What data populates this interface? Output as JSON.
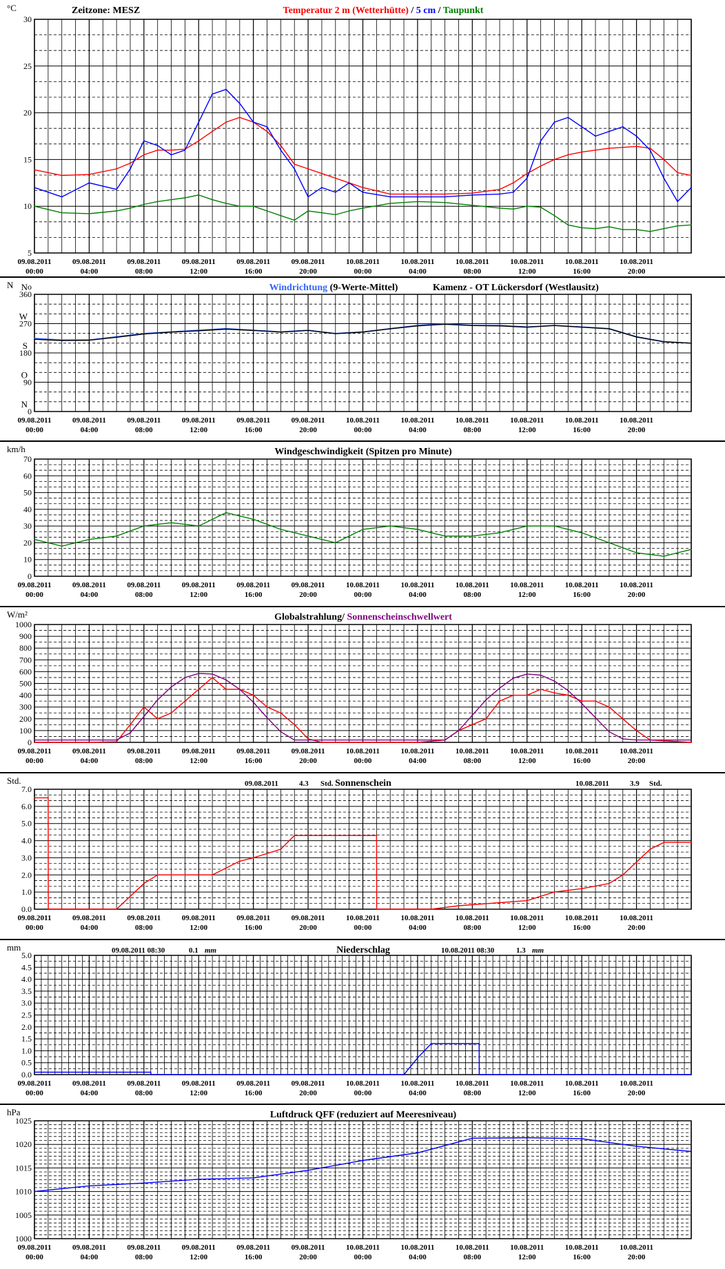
{
  "chart_data": [
    {
      "id": "temp",
      "type": "line",
      "unit_label": "°C",
      "header_left": "Zeitzone: MESZ",
      "title_parts": [
        {
          "text": "Temperatur 2 m (Wetterhütte)",
          "color": "#ff0000"
        },
        {
          "text": "  /  ",
          "color": "#000000"
        },
        {
          "text": "5 cm",
          "color": "#0000ff"
        },
        {
          "text": " / ",
          "color": "#000000"
        },
        {
          "text": "Taupunkt",
          "color": "#008000"
        }
      ],
      "ylim": [
        5,
        30
      ],
      "yticks": [
        "5",
        "10",
        "15",
        "20",
        "25",
        "30"
      ],
      "x_ticks": [
        {
          "date": "09.08.2011",
          "time": "00:00"
        },
        {
          "date": "09.08.2011",
          "time": "04:00"
        },
        {
          "date": "09.08.2011",
          "time": "08:00"
        },
        {
          "date": "09.08.2011",
          "time": "12:00"
        },
        {
          "date": "09.08.2011",
          "time": "16:00"
        },
        {
          "date": "09.08.2011",
          "time": "20:00"
        },
        {
          "date": "10.08.2011",
          "time": "00:00"
        },
        {
          "date": "10.08.2011",
          "time": "04:00"
        },
        {
          "date": "10.08.2011",
          "time": "08:00"
        },
        {
          "date": "10.08.2011",
          "time": "12:00"
        },
        {
          "date": "10.08.2011",
          "time": "16:00"
        },
        {
          "date": "10.08.2011",
          "time": "20:00"
        }
      ],
      "x_hours": [
        0,
        2,
        4,
        6,
        7,
        8,
        9,
        10,
        11,
        12,
        13,
        14,
        15,
        16,
        17,
        18,
        19,
        20,
        21,
        22,
        23,
        24,
        26,
        28,
        30,
        32,
        34,
        35,
        36,
        37,
        38,
        39,
        40,
        41,
        42,
        43,
        44,
        45,
        46,
        47,
        48
      ],
      "series": [
        {
          "name": "Temperatur 2 m (Wetterhütte)",
          "color": "#ff0000",
          "values": [
            13.9,
            13.3,
            13.4,
            14.0,
            14.6,
            15.5,
            16.0,
            16.0,
            16.1,
            17.0,
            18.0,
            19.0,
            19.5,
            19.0,
            18.0,
            16.5,
            14.5,
            14.0,
            13.5,
            13.0,
            12.5,
            12.0,
            11.3,
            11.3,
            11.3,
            11.4,
            11.8,
            12.5,
            13.5,
            14.3,
            15.0,
            15.5,
            15.8,
            16.0,
            16.2,
            16.3,
            16.4,
            16.2,
            15.0,
            13.6,
            13.3
          ]
        },
        {
          "name": "5 cm",
          "color": "#0000ff",
          "values": [
            12.0,
            11.0,
            12.5,
            11.8,
            14.0,
            17.0,
            16.5,
            15.5,
            16.0,
            19.0,
            22.0,
            22.5,
            21.0,
            19.0,
            18.5,
            16.0,
            14.0,
            11.0,
            12.0,
            11.5,
            12.5,
            11.5,
            11.0,
            11.0,
            11.0,
            11.2,
            11.3,
            11.5,
            13.0,
            17.0,
            19.0,
            19.5,
            18.5,
            17.5,
            18.0,
            18.5,
            17.5,
            16.0,
            13.0,
            10.5,
            12.0
          ]
        },
        {
          "name": "Taupunkt",
          "color": "#008000",
          "values": [
            10.0,
            9.3,
            9.2,
            9.5,
            9.8,
            10.2,
            10.5,
            10.7,
            10.9,
            11.2,
            10.7,
            10.3,
            10.0,
            10.0,
            9.5,
            9.0,
            8.5,
            9.5,
            9.3,
            9.1,
            9.5,
            9.8,
            10.3,
            10.5,
            10.4,
            10.1,
            9.8,
            9.7,
            10.0,
            9.9,
            9.0,
            8.0,
            7.7,
            7.6,
            7.8,
            7.5,
            7.5,
            7.3,
            7.6,
            7.9,
            8.0
          ]
        }
      ]
    },
    {
      "id": "winddir",
      "type": "line",
      "unit_label": "N",
      "right_label": "o",
      "title_parts": [
        {
          "text": "Windrichtung",
          "color": "#3366ff"
        },
        {
          "text": " (9-Werte-Mittel)",
          "color": "#000000"
        }
      ],
      "header_right": "Kamenz - OT Lückersdorf (Westlausitz)",
      "ylim": [
        0,
        360
      ],
      "yticks": [
        "0",
        "90",
        "180",
        "270",
        "360"
      ],
      "compass_labels": [
        "N",
        "O",
        "S",
        "W",
        "N"
      ],
      "x_hours": [
        0,
        2,
        4,
        6,
        8,
        10,
        12,
        14,
        16,
        18,
        20,
        22,
        24,
        26,
        28,
        30,
        32,
        34,
        36,
        38,
        40,
        42,
        44,
        46,
        48
      ],
      "series": [
        {
          "name": "Windrichtung",
          "color": "#3366ff",
          "values": [
            225,
            220,
            220,
            230,
            240,
            245,
            250,
            255,
            250,
            245,
            250,
            240,
            245,
            255,
            265,
            270,
            265,
            265,
            260,
            265,
            260,
            255,
            230,
            215,
            210
          ]
        },
        {
          "name": "9-Werte-Mittel",
          "color": "#000000",
          "values": [
            222,
            218,
            219,
            228,
            238,
            244,
            248,
            253,
            249,
            244,
            249,
            239,
            244,
            254,
            263,
            268,
            264,
            263,
            259,
            264,
            259,
            254,
            229,
            214,
            210
          ]
        }
      ]
    },
    {
      "id": "windspeed",
      "type": "line",
      "unit_label": "km/h",
      "title_parts": [
        {
          "text": "Windgeschwindigkeit (Spitzen pro Minute)",
          "color": "#000000"
        }
      ],
      "ylim": [
        0,
        70
      ],
      "yticks": [
        "0",
        "10",
        "20",
        "30",
        "40",
        "50",
        "60",
        "70"
      ],
      "x_hours": [
        0,
        2,
        4,
        6,
        8,
        10,
        12,
        14,
        16,
        18,
        20,
        22,
        24,
        26,
        28,
        30,
        32,
        34,
        36,
        38,
        40,
        42,
        44,
        46,
        48
      ],
      "series": [
        {
          "name": "Windgeschwindigkeit",
          "color": "#008000",
          "values": [
            22,
            18,
            22,
            24,
            30,
            32,
            30,
            38,
            34,
            28,
            24,
            20,
            28,
            30,
            28,
            24,
            24,
            26,
            30,
            30,
            26,
            20,
            14,
            12,
            16
          ]
        }
      ]
    },
    {
      "id": "radiation",
      "type": "line",
      "unit_label": "W/m²",
      "title_parts": [
        {
          "text": "Globalstrahlung",
          "color": "#000000"
        },
        {
          "text": "/ ",
          "color": "#000000"
        },
        {
          "text": "Sonnenscheinschwellwert",
          "color": "#800080"
        }
      ],
      "ylim": [
        0,
        1000
      ],
      "yticks": [
        "0",
        "100",
        "200",
        "300",
        "400",
        "500",
        "600",
        "700",
        "800",
        "900",
        "1000"
      ],
      "x_hours": [
        0,
        4,
        6,
        7,
        8,
        9,
        10,
        11,
        12,
        13,
        14,
        15,
        16,
        17,
        18,
        19,
        20,
        21,
        24,
        28,
        30,
        31,
        32,
        33,
        34,
        35,
        36,
        37,
        38,
        39,
        40,
        41,
        42,
        43,
        44,
        45,
        48
      ],
      "series": [
        {
          "name": "Globalstrahlung",
          "color": "#ff0000",
          "values": [
            0,
            0,
            5,
            150,
            300,
            200,
            250,
            350,
            450,
            550,
            450,
            450,
            400,
            300,
            250,
            150,
            30,
            0,
            0,
            0,
            20,
            100,
            150,
            200,
            350,
            400,
            400,
            450,
            420,
            400,
            350,
            350,
            300,
            200,
            100,
            20,
            0
          ]
        },
        {
          "name": "Sonnenscheinschwellwert",
          "color": "#800080",
          "values": [
            20,
            20,
            20,
            80,
            220,
            360,
            470,
            550,
            585,
            580,
            530,
            450,
            340,
            210,
            90,
            20,
            20,
            20,
            20,
            20,
            20,
            100,
            230,
            360,
            460,
            545,
            580,
            570,
            520,
            440,
            330,
            210,
            90,
            30,
            20,
            20,
            20
          ]
        }
      ]
    },
    {
      "id": "sunshine",
      "type": "line",
      "unit_label": "Std.",
      "title_parts": [
        {
          "text": "Sonnenschein",
          "color": "#000000"
        }
      ],
      "day1": {
        "date": "09.08.2011",
        "value": "4.3",
        "unit": "Std."
      },
      "day2": {
        "date": "10.08.2011",
        "value": "3.9",
        "unit": "Std."
      },
      "ylim": [
        0,
        7
      ],
      "yticks": [
        "0.0",
        "1.0",
        "2.0",
        "3.0",
        "4.0",
        "5.0",
        "6.0",
        "7.0"
      ],
      "x_hours": [
        0,
        1,
        1.01,
        6,
        8,
        9,
        13,
        15,
        16,
        18,
        19,
        20,
        25,
        25.01,
        29,
        31,
        36,
        38,
        40,
        42,
        43,
        45,
        46,
        48
      ],
      "series": [
        {
          "name": "Sonnenschein",
          "color": "#ff0000",
          "values": [
            6.5,
            6.5,
            0,
            0,
            1.5,
            2.0,
            2.0,
            2.8,
            3.0,
            3.5,
            4.3,
            4.3,
            4.3,
            0,
            0,
            0.2,
            0.5,
            1.0,
            1.2,
            1.5,
            2.0,
            3.5,
            3.9,
            3.9
          ]
        }
      ]
    },
    {
      "id": "precip",
      "type": "line",
      "unit_label": "mm",
      "title_parts": [
        {
          "text": "Niederschlag",
          "color": "#000000"
        }
      ],
      "day1": {
        "date": "09.08.2011 08:30",
        "value": "0.1",
        "unit": "mm"
      },
      "day2": {
        "date": "10.08.2011 08:30",
        "value": "1.3",
        "unit": "mm"
      },
      "ylim": [
        0,
        5
      ],
      "yticks": [
        "0.0",
        "0.5",
        "1.0",
        "1.5",
        "2.0",
        "2.5",
        "3.0",
        "3.5",
        "4.0",
        "4.5",
        "5.0"
      ],
      "x_hours": [
        0,
        8.5,
        8.51,
        27,
        28,
        29,
        32.5,
        32.51,
        48
      ],
      "series": [
        {
          "name": "Niederschlag",
          "color": "#0000ff",
          "values": [
            0.1,
            0.1,
            0,
            0,
            0.7,
            1.3,
            1.3,
            0,
            0
          ]
        }
      ]
    },
    {
      "id": "pressure",
      "type": "line",
      "unit_label": "hPa",
      "title_parts": [
        {
          "text": "Luftdruck QFF (reduziert auf Meeresniveau)",
          "color": "#000000"
        }
      ],
      "ylim": [
        1000,
        1025
      ],
      "yticks": [
        "1000",
        "1005",
        "1010",
        "1015",
        "1020",
        "1025"
      ],
      "x_hours": [
        0,
        4,
        8,
        12,
        16,
        20,
        24,
        28,
        32,
        36,
        40,
        44,
        48
      ],
      "series": [
        {
          "name": "Luftdruck QFF",
          "color": "#0000ff",
          "values": [
            1010.0,
            1011.2,
            1011.8,
            1012.6,
            1012.9,
            1014.5,
            1016.6,
            1018.2,
            1021.3,
            1021.4,
            1021.2,
            1019.6,
            1018.5
          ]
        }
      ]
    }
  ]
}
